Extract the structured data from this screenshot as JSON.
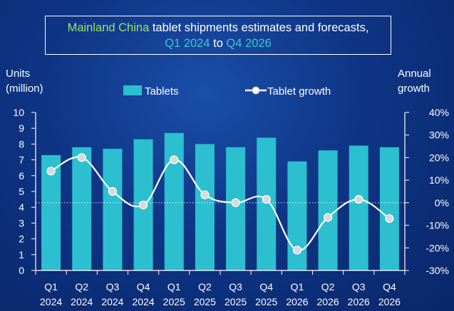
{
  "title": {
    "part1": "Mainland China",
    "part2": " tablet shipments estimates and forecasts,",
    "part3": "Q1 2024",
    "part4": " to ",
    "part5": "Q4 2026"
  },
  "axis_left_label": [
    "Units",
    "(million)"
  ],
  "axis_right_label": [
    "Annual",
    "growth"
  ],
  "legend": {
    "bars": "Tablets",
    "line": "Tablet growth"
  },
  "colors": {
    "bar": "#2bbfd0",
    "line": "#ffffff",
    "title_green": "#9be564",
    "title_cyan": "#3fc4d8"
  },
  "chart_data": {
    "type": "bar",
    "categories": [
      "Q1 2024",
      "Q2 2024",
      "Q3 2024",
      "Q4 2024",
      "Q1 2025",
      "Q2 2025",
      "Q3 2025",
      "Q4 2025",
      "Q1 2026",
      "Q2 2026",
      "Q3 2026",
      "Q4 2026"
    ],
    "category_lines": [
      [
        "Q1",
        "2024"
      ],
      [
        "Q2",
        "2024"
      ],
      [
        "Q3",
        "2024"
      ],
      [
        "Q4",
        "2024"
      ],
      [
        "Q1",
        "2025"
      ],
      [
        "Q2",
        "2025"
      ],
      [
        "Q3",
        "2025"
      ],
      [
        "Q4",
        "2025"
      ],
      [
        "Q1",
        "2026"
      ],
      [
        "Q2",
        "2026"
      ],
      [
        "Q3",
        "2026"
      ],
      [
        "Q4",
        "2026"
      ]
    ],
    "series": [
      {
        "name": "Tablets",
        "type": "bar",
        "axis": "left",
        "values": [
          7.3,
          7.8,
          7.7,
          8.3,
          8.7,
          8.0,
          7.8,
          8.4,
          6.9,
          7.6,
          7.9,
          7.8
        ]
      },
      {
        "name": "Tablet growth",
        "type": "line",
        "axis": "right",
        "values": [
          14,
          20,
          5,
          -1,
          19,
          3.5,
          0,
          1.5,
          -21,
          -6.5,
          1.5,
          -7
        ]
      }
    ],
    "y_left": {
      "min": 0,
      "max": 10,
      "ticks": [
        "0",
        "1",
        "2",
        "3",
        "4",
        "5",
        "6",
        "7",
        "8",
        "9",
        "10"
      ]
    },
    "y_right": {
      "min": -30,
      "max": 40,
      "ticks": [
        "-30%",
        "-20%",
        "-10%",
        "0%",
        "10%",
        "20%",
        "30%",
        "40%"
      ]
    },
    "zero_line": "dotted"
  }
}
